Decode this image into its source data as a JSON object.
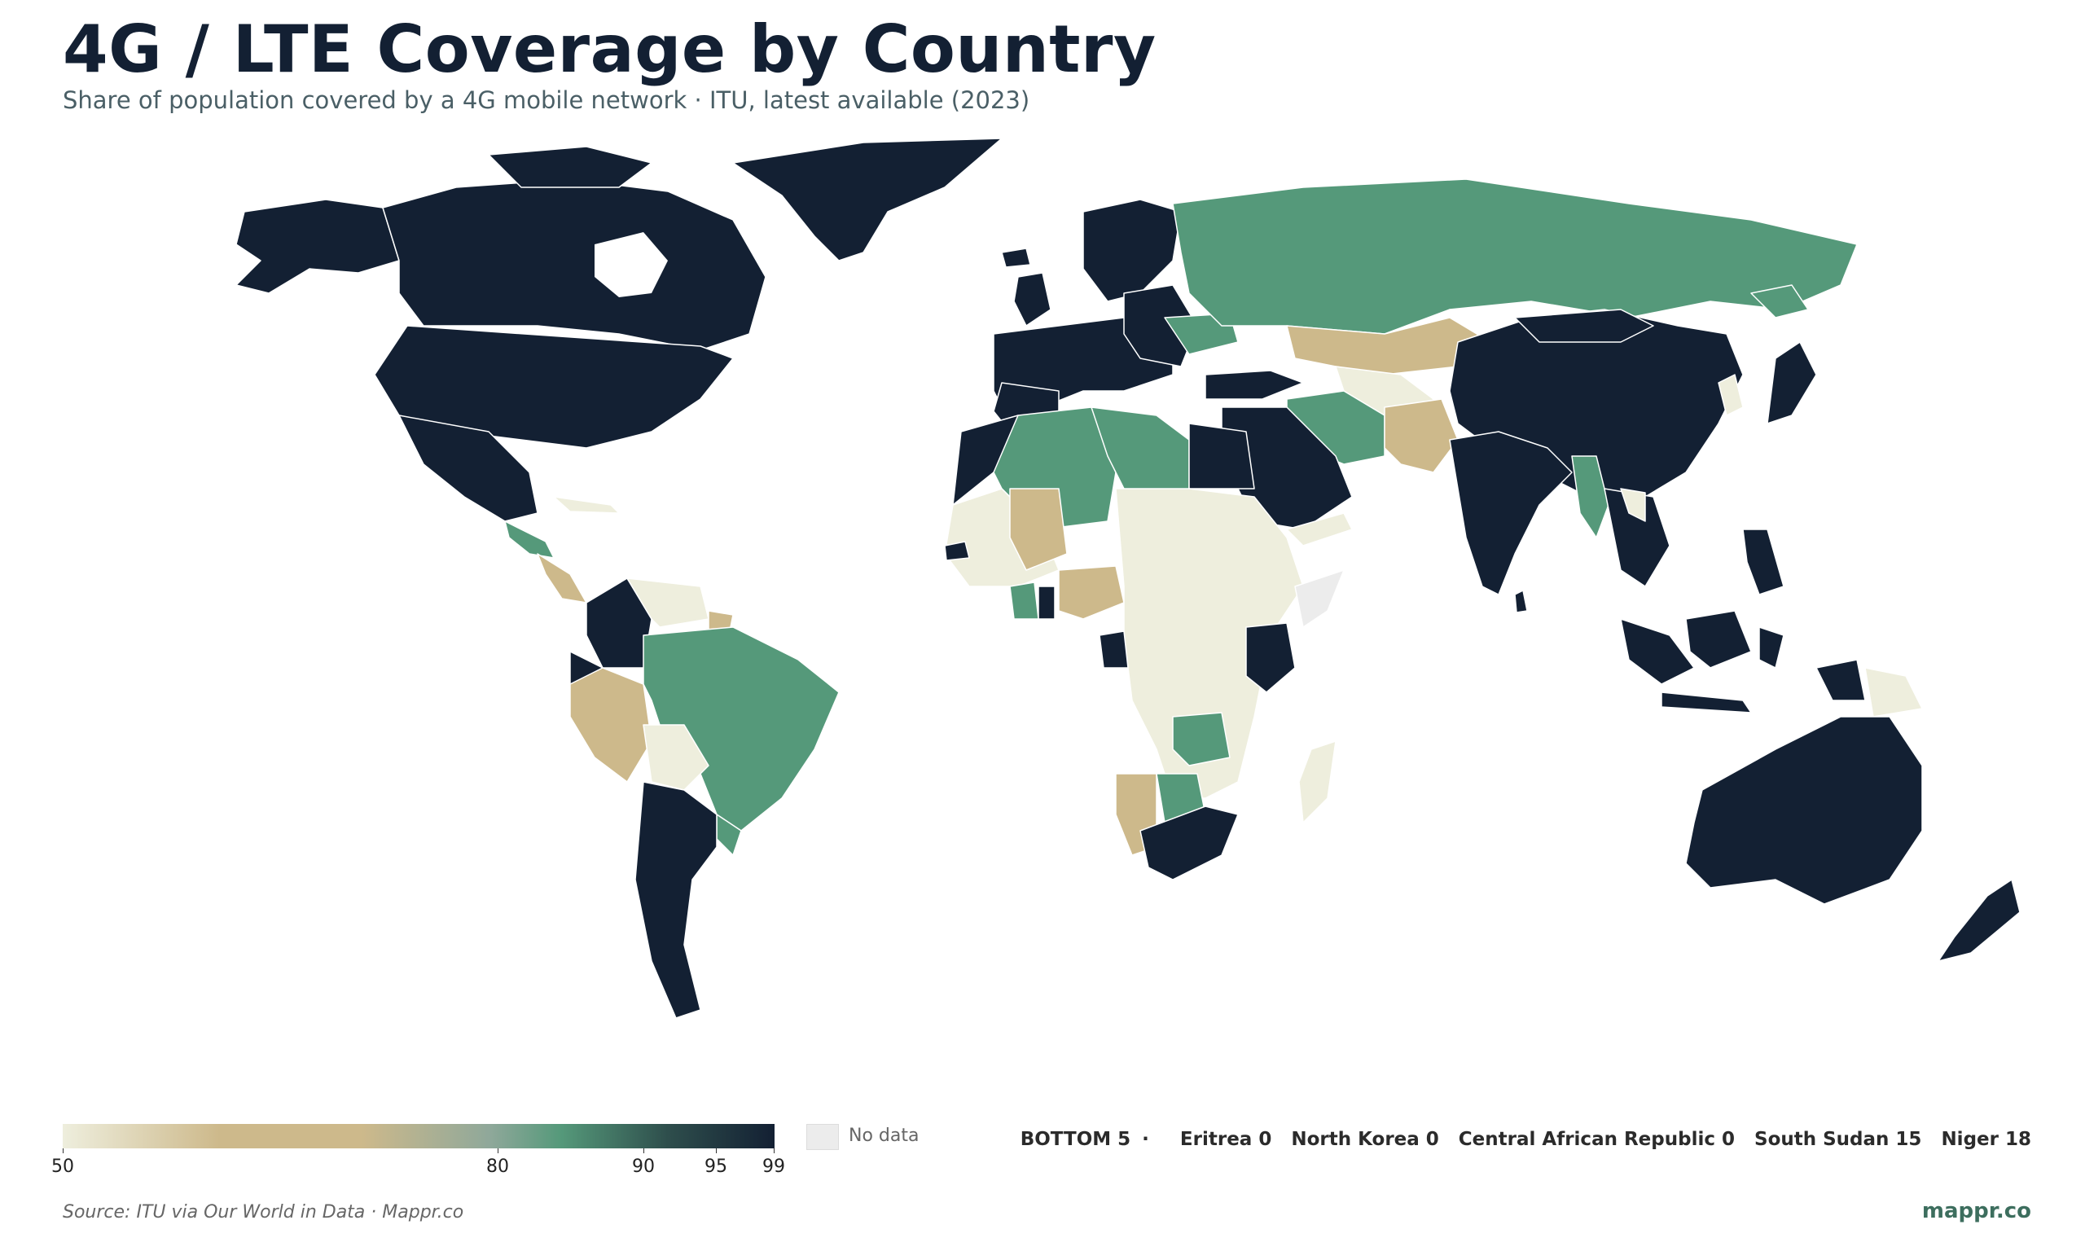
{
  "title": "4G / LTE Coverage by Country",
  "subtitle": "Share of population covered by a 4G mobile network · ITU, latest available (2023)",
  "colors": {
    "top": "#132033",
    "high": "#55997a",
    "mid": "#cdb98b",
    "low": "#eeeedd",
    "nodata": "#ececec"
  },
  "legend": {
    "ticks": [
      "50",
      "80",
      "90",
      "95",
      "99"
    ],
    "no_data_label": "No data"
  },
  "bottom5": {
    "label": "BOTTOM 5",
    "separator": "·",
    "items": [
      "Eritrea 0",
      "North Korea 0",
      "Central African Republic 0",
      "South Sudan 15",
      "Niger 18"
    ]
  },
  "source": "Source: ITU via Our World in Data · Mappr.co",
  "brand": "mappr.co"
}
